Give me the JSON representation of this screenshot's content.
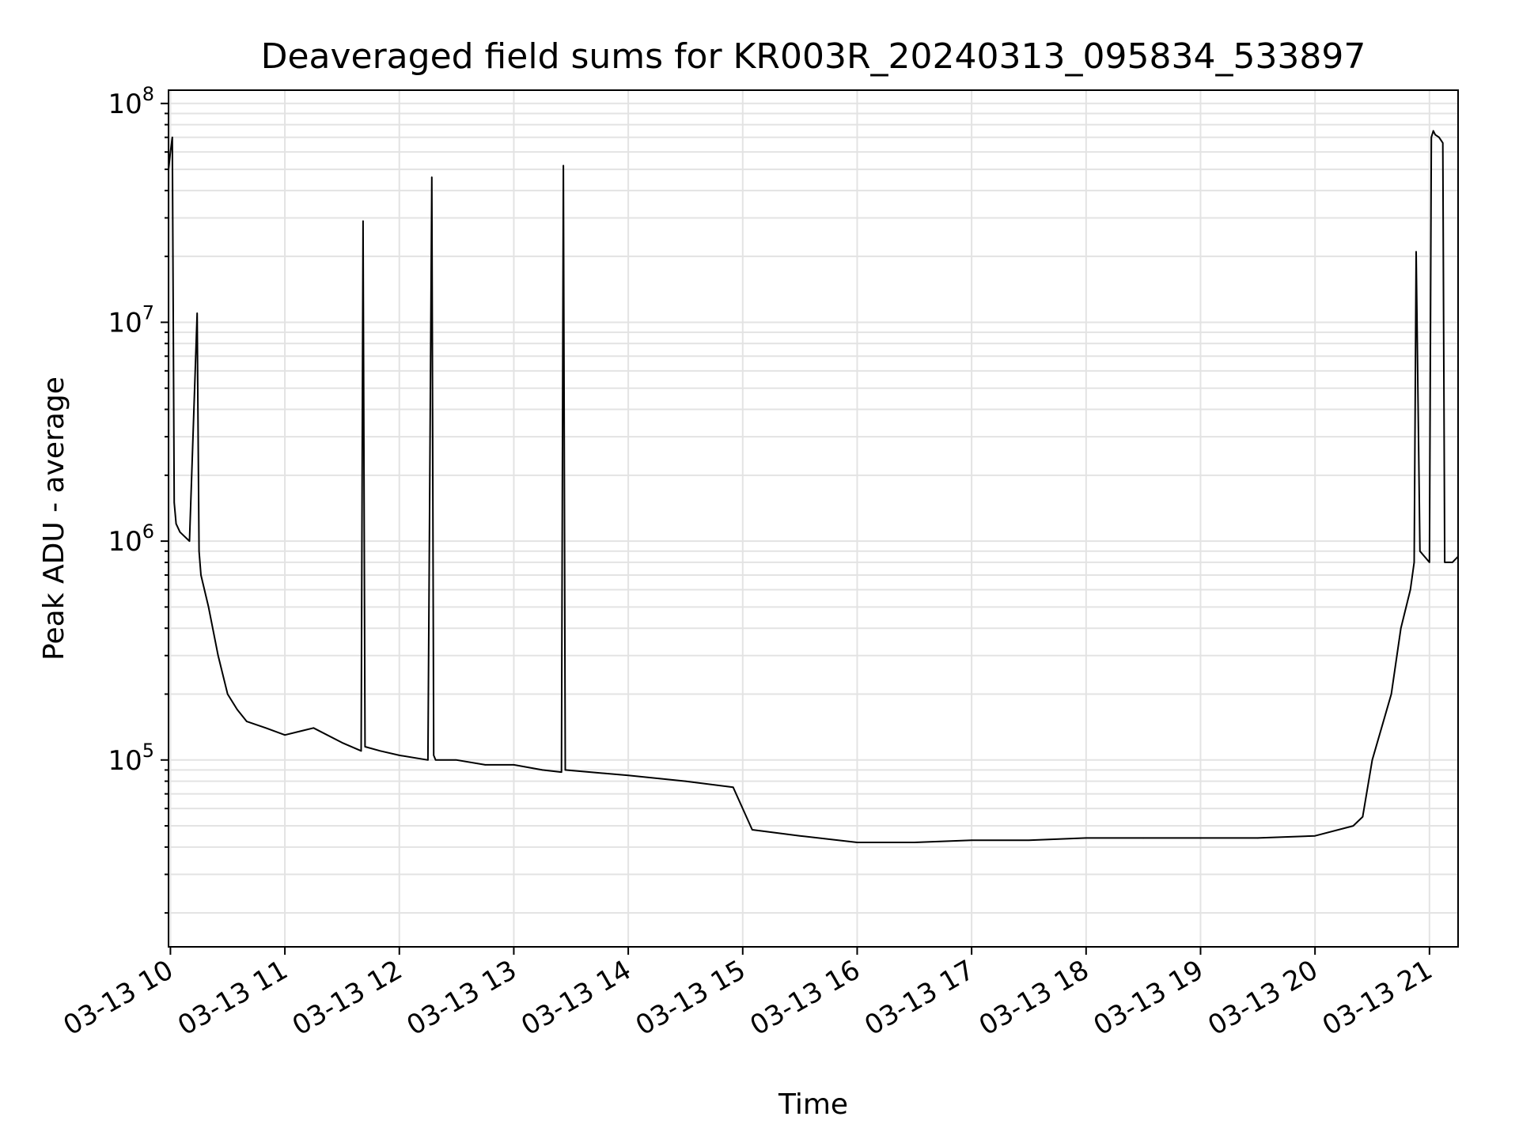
{
  "chart_data": {
    "type": "line",
    "title": "Deaveraged field sums for KR003R_20240313_095834_533897",
    "xlabel": "Time",
    "ylabel": "Peak ADU - average",
    "yscale": "log",
    "ylim": [
      14000,
      115000000
    ],
    "xlim": [
      "2024-03-13 09:59",
      "2024-03-13 21:15"
    ],
    "grid": true,
    "line_color": "#000000",
    "x_ticks": [
      "03-13 10",
      "03-13 11",
      "03-13 12",
      "03-13 13",
      "03-13 14",
      "03-13 15",
      "03-13 16",
      "03-13 17",
      "03-13 18",
      "03-13 19",
      "03-13 20",
      "03-13 21"
    ],
    "y_ticks": [
      {
        "base": "10",
        "exp": "5"
      },
      {
        "base": "10",
        "exp": "6"
      },
      {
        "base": "10",
        "exp": "7"
      },
      {
        "base": "10",
        "exp": "8"
      }
    ],
    "series": [
      {
        "x": [
          "09:59",
          "10:00",
          "10:01",
          "10:02",
          "10:03",
          "10:05",
          "10:10",
          "10:14",
          "10:15",
          "10:16",
          "10:20",
          "10:25",
          "10:30",
          "10:35",
          "10:40",
          "10:50",
          "11:00",
          "11:15",
          "11:30",
          "11:40",
          "11:41",
          "11:42",
          "11:50",
          "12:00",
          "12:15",
          "12:17",
          "12:18",
          "12:19",
          "12:30",
          "12:45",
          "13:00",
          "13:15",
          "13:25",
          "13:26",
          "13:27",
          "13:40",
          "14:00",
          "14:30",
          "14:55",
          "15:05",
          "15:30",
          "16:00",
          "16:30",
          "17:00",
          "17:30",
          "18:00",
          "18:30",
          "19:00",
          "19:30",
          "20:00",
          "20:20",
          "20:25",
          "20:30",
          "20:40",
          "20:45",
          "20:50",
          "20:52",
          "20:53",
          "20:55",
          "21:00",
          "21:01",
          "21:02",
          "21:03",
          "21:05",
          "21:07",
          "21:08",
          "21:10",
          "21:12",
          "21:15"
        ],
        "y": [
          50000000,
          60000000,
          70000000,
          1500000,
          1200000,
          1100000,
          1000000,
          11000000,
          900000,
          700000,
          500000,
          300000,
          200000,
          170000,
          150000,
          140000,
          130000,
          140000,
          120000,
          110000,
          29000000,
          115000,
          110000,
          105000,
          100000,
          46000000,
          105000,
          100000,
          100000,
          95000,
          95000,
          90000,
          88000,
          52000000,
          90000,
          88000,
          85000,
          80000,
          75000,
          48000,
          45000,
          42000,
          42000,
          43000,
          43000,
          44000,
          44000,
          44000,
          44000,
          45000,
          50000,
          55000,
          100000,
          200000,
          400000,
          600000,
          800000,
          21000000,
          900000,
          800000,
          70000000,
          75000000,
          72000000,
          70000000,
          66000000,
          800000,
          800000,
          800000,
          850000
        ]
      }
    ]
  }
}
